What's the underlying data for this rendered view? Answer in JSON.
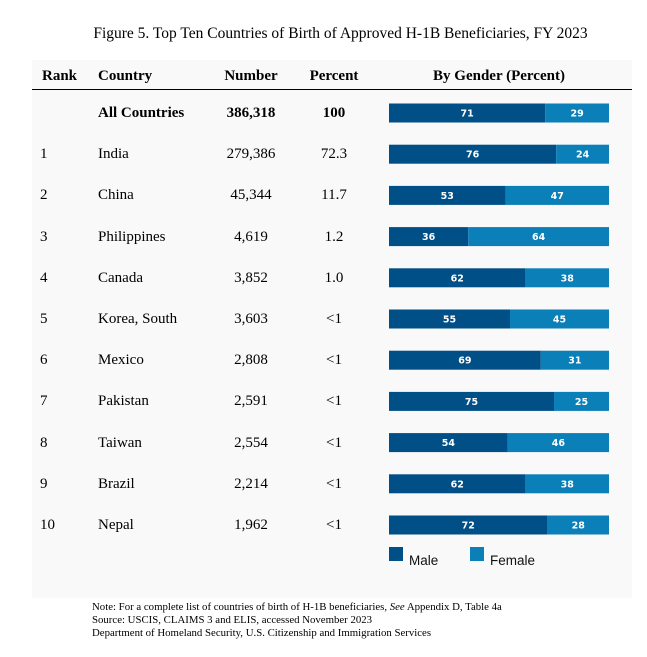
{
  "figure": {
    "title": "Figure 5. Top Ten Countries of Birth of Approved H-1B Beneficiaries, FY 2023"
  },
  "headers": {
    "rank": "Rank",
    "country": "Country",
    "number": "Number",
    "percent": "Percent",
    "gender": "By Gender (Percent)"
  },
  "colors": {
    "male": "#004f87",
    "female": "#0a7fb8"
  },
  "legend": {
    "male": "Male",
    "female": "Female"
  },
  "chart_data": {
    "type": "bar",
    "stacked": true,
    "orientation": "horizontal",
    "title": "By Gender (Percent)",
    "xlim": [
      0,
      100
    ],
    "legend_position": "bottom",
    "grid": false,
    "categories": [
      "All Countries",
      "India",
      "China",
      "Philippines",
      "Canada",
      "Korea, South",
      "Mexico",
      "Pakistan",
      "Taiwan",
      "Brazil",
      "Nepal"
    ],
    "series": [
      {
        "name": "Male",
        "values": [
          71,
          76,
          53,
          36,
          62,
          55,
          69,
          75,
          54,
          62,
          72
        ]
      },
      {
        "name": "Female",
        "values": [
          29,
          24,
          47,
          64,
          38,
          45,
          31,
          25,
          46,
          38,
          28
        ]
      }
    ]
  },
  "rows": [
    {
      "rank": "",
      "country": "All Countries",
      "number": "386,318",
      "percent": "100",
      "bold": true
    },
    {
      "rank": "1",
      "country": "India",
      "number": "279,386",
      "percent": "72.3"
    },
    {
      "rank": "2",
      "country": "China",
      "number": "45,344",
      "percent": "11.7"
    },
    {
      "rank": "3",
      "country": "Philippines",
      "number": "4,619",
      "percent": "1.2"
    },
    {
      "rank": "4",
      "country": "Canada",
      "number": "3,852",
      "percent": "1.0"
    },
    {
      "rank": "5",
      "country": "Korea, South",
      "number": "3,603",
      "percent": "<1"
    },
    {
      "rank": "6",
      "country": "Mexico",
      "number": "2,808",
      "percent": "<1"
    },
    {
      "rank": "7",
      "country": "Pakistan",
      "number": "2,591",
      "percent": "<1"
    },
    {
      "rank": "8",
      "country": "Taiwan",
      "number": "2,554",
      "percent": "<1"
    },
    {
      "rank": "9",
      "country": "Brazil",
      "number": "2,214",
      "percent": "<1"
    },
    {
      "rank": "10",
      "country": "Nepal",
      "number": "1,962",
      "percent": "<1"
    }
  ],
  "notes": {
    "note_prefix": "Note: For a complete list of countries of birth of H-1B beneficiaries, ",
    "note_see": "See",
    "note_suffix": " Appendix D, Table 4a",
    "source": "Source: USCIS, CLAIMS 3 and ELIS, accessed November 2023",
    "department": "Department of Homeland Security, U.S. Citizenship and Immigration Services"
  }
}
